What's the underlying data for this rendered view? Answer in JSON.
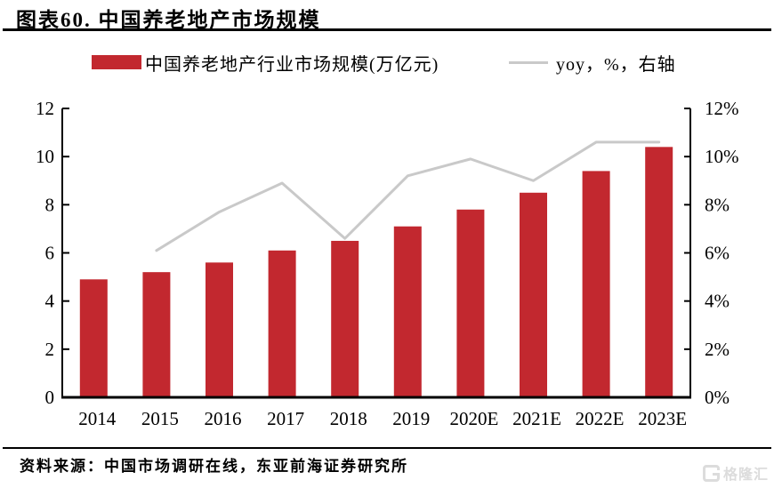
{
  "header": {
    "title": "图表60. 中国养老地产市场规模"
  },
  "legend": {
    "items": [
      {
        "label": "中国养老地产行业市场规模(万亿元)",
        "marker": "bar",
        "color": "#c2282f"
      },
      {
        "label": "yoy，%，右轴",
        "marker": "line",
        "color": "#c9c9c9"
      }
    ]
  },
  "chart_data": {
    "type": "bar",
    "title": "中国养老地产市场规模",
    "categories": [
      "2014",
      "2015",
      "2016",
      "2017",
      "2018",
      "2019",
      "2020E",
      "2021E",
      "2022E",
      "2023E"
    ],
    "series": [
      {
        "name": "中国养老地产行业市场规模(万亿元)",
        "type": "bar",
        "axis": "left",
        "color": "#c2282f",
        "values": [
          4.9,
          5.2,
          5.6,
          6.1,
          6.5,
          7.1,
          7.8,
          8.5,
          9.4,
          10.4
        ]
      },
      {
        "name": "yoy，%，右轴",
        "type": "line",
        "axis": "right",
        "color": "#c9c9c9",
        "values": [
          null,
          6.1,
          7.7,
          8.9,
          6.6,
          9.2,
          9.9,
          9.0,
          10.6,
          10.6
        ]
      }
    ],
    "left_axis": {
      "min": 0,
      "max": 12,
      "step": 2,
      "tick_labels": [
        "0",
        "2",
        "4",
        "6",
        "8",
        "10",
        "12"
      ]
    },
    "right_axis": {
      "min": 0,
      "max": 12,
      "step": 2,
      "unit": "%",
      "tick_labels": [
        "0%",
        "2%",
        "4%",
        "6%",
        "8%",
        "10%",
        "12%"
      ]
    },
    "grid": false,
    "legend_position": "top"
  },
  "footer": {
    "source": "资料来源：中国市场调研在线，东亚前海证券研究所"
  },
  "watermark": {
    "text": "格隆汇"
  }
}
